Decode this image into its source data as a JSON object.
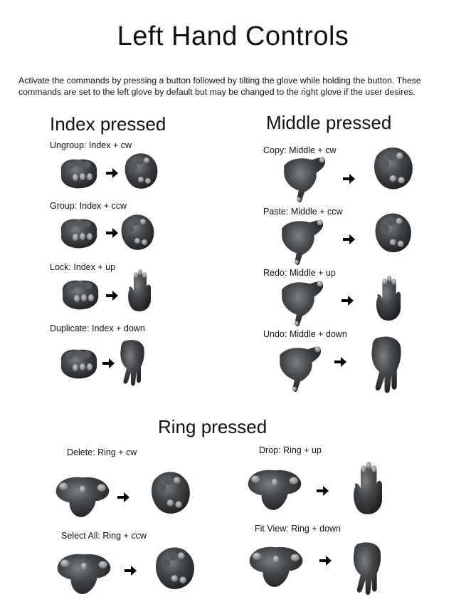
{
  "title": "Left Hand Controls",
  "intro": "Activate the commands by pressing a button followed by tilting the glove while holding the button. These commands are set to the left glove by default but may be changed to the right glove if the user desires.",
  "sections": {
    "index": {
      "heading": "Index pressed",
      "commands": [
        {
          "label": "Ungroup: Index + cw"
        },
        {
          "label": "Group: Index + ccw"
        },
        {
          "label": "Lock: Index + up"
        },
        {
          "label": "Duplicate: Index + down"
        }
      ]
    },
    "middle": {
      "heading": "Middle pressed",
      "commands": [
        {
          "label": "Copy: Middle + cw"
        },
        {
          "label": "Paste: Middle + ccw"
        },
        {
          "label": "Redo: Middle + up"
        },
        {
          "label": "Undo: Middle + down"
        }
      ]
    },
    "ring": {
      "heading": "Ring pressed",
      "commands": [
        {
          "label": "Delete: Ring + cw"
        },
        {
          "label": "Select All: Ring + ccw"
        },
        {
          "label": "Drop: Ring + up"
        },
        {
          "label": "Fit View: Ring + down"
        }
      ]
    }
  },
  "icons": {
    "glove": "glove-photo",
    "arrow": "right-arrow"
  },
  "colors": {
    "glove": "#3b3d3f",
    "glove_highlight": "#8d9296",
    "arrow": "#000000"
  }
}
